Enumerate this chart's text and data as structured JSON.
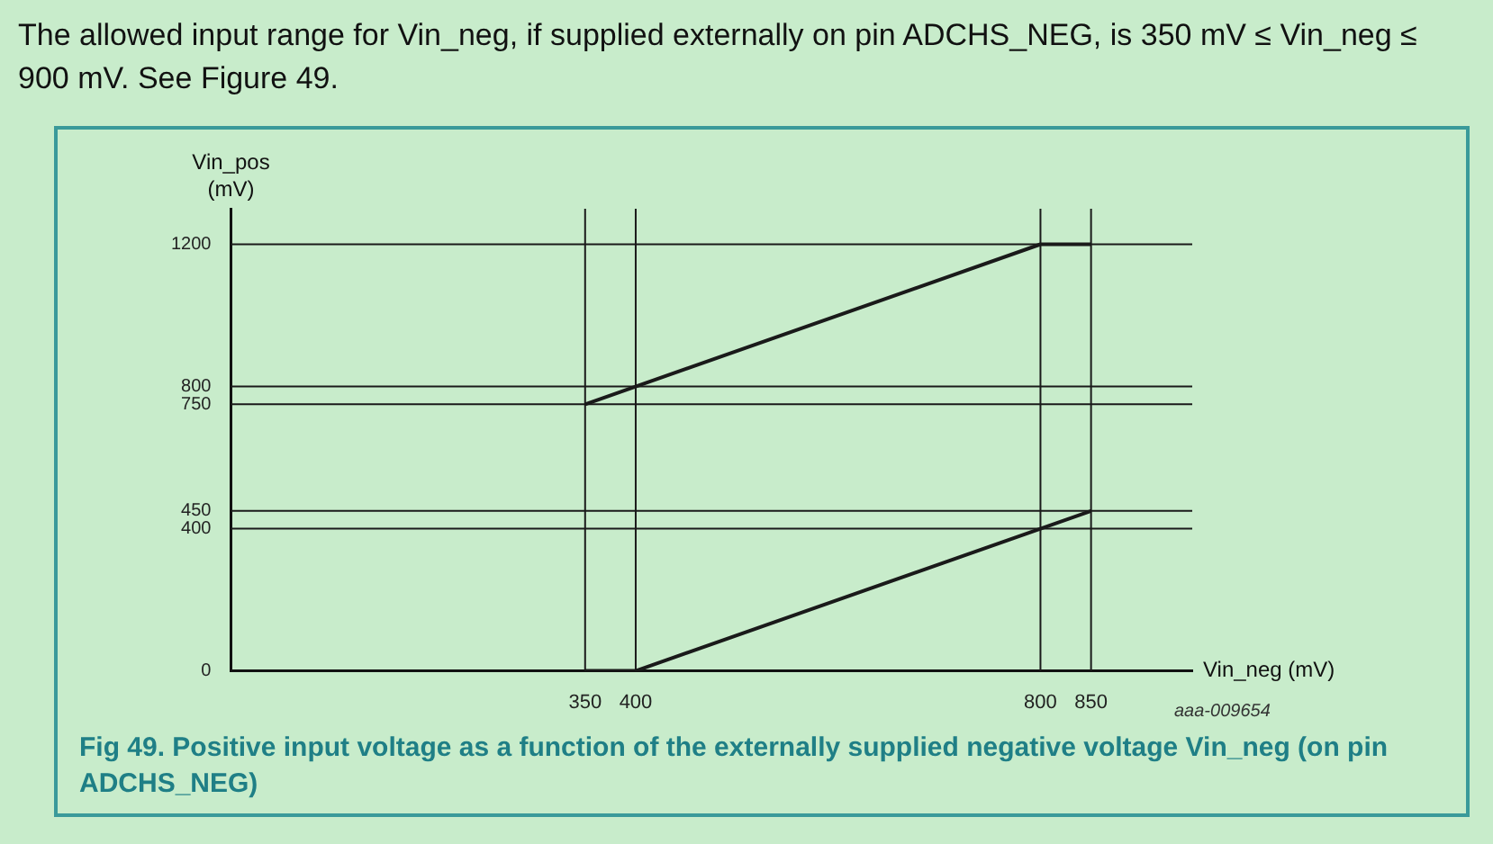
{
  "chart_data": {
    "type": "line",
    "title": "The allowed input range for Vin_neg, if supplied externally on pin ADCHS_NEG, is 350 mV ≤ Vin_neg ≤ 900 mV. See Figure 49.",
    "xlabel": "Vin_neg (mV)",
    "ylabel": "Vin_pos (mV)",
    "series": [
      {
        "x": [
          350,
          800,
          850
        ],
        "values": [
          750,
          1200,
          1200
        ],
        "color": "#1a1a1a"
      },
      {
        "x": [
          350,
          400,
          850
        ],
        "values": [
          0,
          0,
          450
        ],
        "color": "#1a1a1a"
      }
    ],
    "xlim": [
      0,
      950
    ],
    "xticks": [
      350,
      400,
      800,
      850
    ],
    "ylim": [
      0,
      1300
    ],
    "yticks": [
      0,
      400,
      450,
      750,
      800,
      1200
    ],
    "ref_lines": [
      {
        "axis": "x",
        "value": 350,
        "color": "#1a1a1a"
      },
      {
        "axis": "x",
        "value": 400,
        "color": "#1a1a1a"
      },
      {
        "axis": "x",
        "value": 800,
        "color": "#1a1a1a"
      },
      {
        "axis": "x",
        "value": 850,
        "color": "#1a1a1a"
      },
      {
        "axis": "y",
        "value": 400,
        "color": "#1a1a1a"
      },
      {
        "axis": "y",
        "value": 450,
        "color": "#1a1a1a"
      },
      {
        "axis": "y",
        "value": 750,
        "color": "#1a1a1a"
      },
      {
        "axis": "y",
        "value": 800,
        "color": "#1a1a1a"
      },
      {
        "axis": "y",
        "value": 1200,
        "color": "#1a1a1a"
      }
    ],
    "grid": false,
    "legend": false,
    "marker": "none",
    "line_style": "solid",
    "annotations": [
      "aaa-009654",
      "Fig 49.   Positive input voltage as a function of the externally supplied negative voltage Vin_neg (on pin ADCHS_NEG)"
    ]
  }
}
